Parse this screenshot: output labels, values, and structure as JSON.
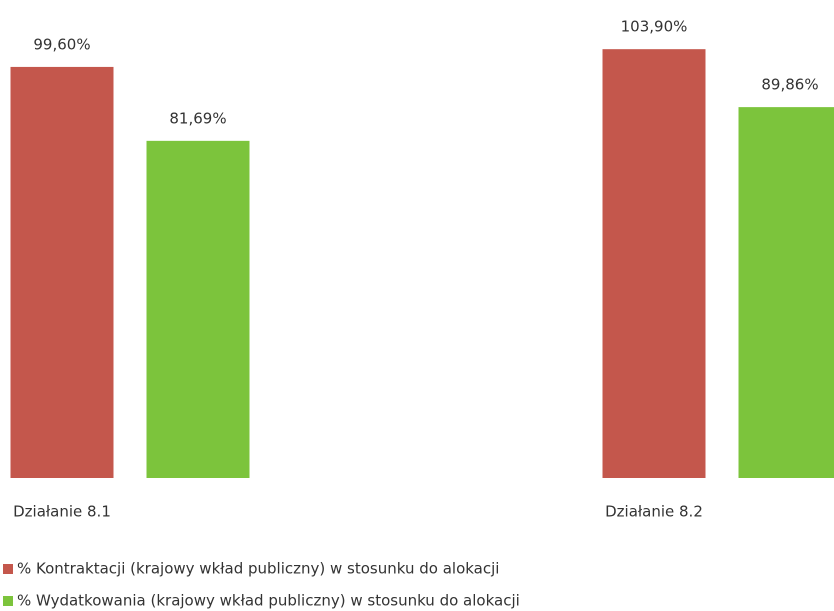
{
  "chart_data": {
    "type": "bar",
    "categories": [
      "Działanie 8.1",
      "Działanie 8.2"
    ],
    "series": [
      {
        "name": "% Kontraktacji (krajowy wkład publiczny) w stosunku do alokacji",
        "color": "#c4574c",
        "values": [
          99.6,
          103.9
        ],
        "value_labels": [
          "99,60%",
          "103,90%"
        ]
      },
      {
        "name": "% Wydatkowania (krajowy wkład publiczny) w stosunku do alokacji",
        "color": "#7cc43c",
        "values": [
          81.69,
          89.86
        ],
        "value_labels": [
          "81,69%",
          "89,86%"
        ]
      }
    ],
    "ylim": [
      0,
      110
    ]
  }
}
